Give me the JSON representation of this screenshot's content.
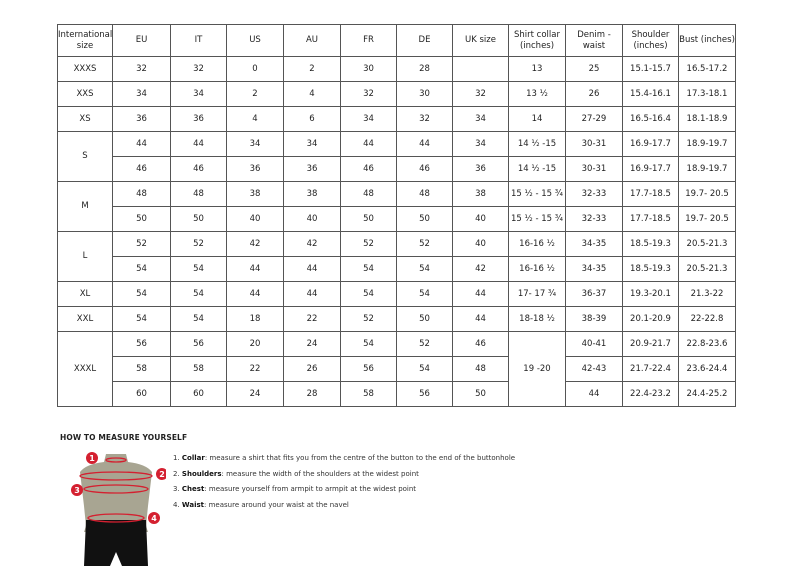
{
  "headers": [
    "International size",
    "EU",
    "IT",
    "US",
    "AU",
    "FR",
    "DE",
    "UK size",
    "Shirt collar (inches)",
    "Denim - waist",
    "Shoulder (inches)",
    "Bust (inches)"
  ],
  "rows": [
    [
      {
        "v": "XXXS"
      },
      {
        "v": "32"
      },
      {
        "v": "32"
      },
      {
        "v": "0"
      },
      {
        "v": "2"
      },
      {
        "v": "30"
      },
      {
        "v": "28"
      },
      {
        "v": ""
      },
      {
        "v": "13"
      },
      {
        "v": "25"
      },
      {
        "v": "15.1-15.7"
      },
      {
        "v": "16.5-17.2"
      }
    ],
    [
      {
        "v": "XXS"
      },
      {
        "v": "34"
      },
      {
        "v": "34"
      },
      {
        "v": "2"
      },
      {
        "v": "4"
      },
      {
        "v": "32"
      },
      {
        "v": "30"
      },
      {
        "v": "32"
      },
      {
        "v": "13 ½"
      },
      {
        "v": "26"
      },
      {
        "v": "15.4-16.1"
      },
      {
        "v": "17.3-18.1"
      }
    ],
    [
      {
        "v": "XS"
      },
      {
        "v": "36"
      },
      {
        "v": "36"
      },
      {
        "v": "4"
      },
      {
        "v": "6"
      },
      {
        "v": "34"
      },
      {
        "v": "32"
      },
      {
        "v": "34"
      },
      {
        "v": "14"
      },
      {
        "v": "27-29"
      },
      {
        "v": "16.5-16.4"
      },
      {
        "v": "18.1-18.9"
      }
    ],
    [
      {
        "v": "S",
        "rs": 2
      },
      {
        "v": "44"
      },
      {
        "v": "44"
      },
      {
        "v": "34"
      },
      {
        "v": "34"
      },
      {
        "v": "44"
      },
      {
        "v": "44"
      },
      {
        "v": "34"
      },
      {
        "v": "14 ½ -15"
      },
      {
        "v": "30-31"
      },
      {
        "v": "16.9-17.7"
      },
      {
        "v": "18.9-19.7"
      }
    ],
    [
      {
        "v": "46"
      },
      {
        "v": "46"
      },
      {
        "v": "36"
      },
      {
        "v": "36"
      },
      {
        "v": "46"
      },
      {
        "v": "46"
      },
      {
        "v": "36"
      },
      {
        "v": "14 ½ -15"
      },
      {
        "v": "30-31"
      },
      {
        "v": "16.9-17.7"
      },
      {
        "v": "18.9-19.7"
      }
    ],
    [
      {
        "v": "M",
        "rs": 2
      },
      {
        "v": "48"
      },
      {
        "v": "48"
      },
      {
        "v": "38"
      },
      {
        "v": "38"
      },
      {
        "v": "48"
      },
      {
        "v": "48"
      },
      {
        "v": "38"
      },
      {
        "v": "15 ½ - 15 ¾"
      },
      {
        "v": "32-33"
      },
      {
        "v": "17.7-18.5"
      },
      {
        "v": "19.7- 20.5"
      }
    ],
    [
      {
        "v": "50"
      },
      {
        "v": "50"
      },
      {
        "v": "40"
      },
      {
        "v": "40"
      },
      {
        "v": "50"
      },
      {
        "v": "50"
      },
      {
        "v": "40"
      },
      {
        "v": "15 ½ - 15 ¾"
      },
      {
        "v": "32-33"
      },
      {
        "v": "17.7-18.5"
      },
      {
        "v": "19.7- 20.5"
      }
    ],
    [
      {
        "v": "L",
        "rs": 2
      },
      {
        "v": "52"
      },
      {
        "v": "52"
      },
      {
        "v": "42"
      },
      {
        "v": "42"
      },
      {
        "v": "52"
      },
      {
        "v": "52"
      },
      {
        "v": "40"
      },
      {
        "v": "16-16 ½"
      },
      {
        "v": "34-35"
      },
      {
        "v": "18.5-19.3"
      },
      {
        "v": "20.5-21.3"
      }
    ],
    [
      {
        "v": "54"
      },
      {
        "v": "54"
      },
      {
        "v": "44"
      },
      {
        "v": "44"
      },
      {
        "v": "54"
      },
      {
        "v": "54"
      },
      {
        "v": "42"
      },
      {
        "v": "16-16 ½"
      },
      {
        "v": "34-35"
      },
      {
        "v": "18.5-19.3"
      },
      {
        "v": "20.5-21.3"
      }
    ],
    [
      {
        "v": "XL"
      },
      {
        "v": "54"
      },
      {
        "v": "54"
      },
      {
        "v": "44"
      },
      {
        "v": "44"
      },
      {
        "v": "54"
      },
      {
        "v": "54"
      },
      {
        "v": "44"
      },
      {
        "v": "17- 17 ¾"
      },
      {
        "v": "36-37"
      },
      {
        "v": "19.3-20.1"
      },
      {
        "v": "21.3-22"
      }
    ],
    [
      {
        "v": "XXL"
      },
      {
        "v": "54"
      },
      {
        "v": "54"
      },
      {
        "v": "18"
      },
      {
        "v": "22"
      },
      {
        "v": "52"
      },
      {
        "v": "50"
      },
      {
        "v": "44"
      },
      {
        "v": "18-18 ½"
      },
      {
        "v": "38-39"
      },
      {
        "v": "20.1-20.9"
      },
      {
        "v": "22-22.8"
      }
    ],
    [
      {
        "v": "XXXL",
        "rs": 3
      },
      {
        "v": "56"
      },
      {
        "v": "56"
      },
      {
        "v": "20"
      },
      {
        "v": "24"
      },
      {
        "v": "54"
      },
      {
        "v": "52"
      },
      {
        "v": "46"
      },
      {
        "v": "19 -20",
        "rs": 3
      },
      {
        "v": "40-41"
      },
      {
        "v": "20.9-21.7"
      },
      {
        "v": "22.8-23.6"
      }
    ],
    [
      {
        "v": "58"
      },
      {
        "v": "58"
      },
      {
        "v": "22"
      },
      {
        "v": "26"
      },
      {
        "v": "56"
      },
      {
        "v": "54"
      },
      {
        "v": "48"
      },
      {
        "v": "42-43"
      },
      {
        "v": "21.7-22.4"
      },
      {
        "v": "23.6-24.4"
      }
    ],
    [
      {
        "v": "60"
      },
      {
        "v": "60"
      },
      {
        "v": "24"
      },
      {
        "v": "28"
      },
      {
        "v": "58"
      },
      {
        "v": "56"
      },
      {
        "v": "50"
      },
      {
        "v": "44"
      },
      {
        "v": "22.4-23.2"
      },
      {
        "v": "24.4-25.2"
      }
    ]
  ],
  "measure": {
    "title": "HOW TO MEASURE YOURSELF",
    "steps": [
      {
        "n": "1.",
        "term": "Collar",
        "text": ": measure a shirt that fits you from the centre of the button to the end of the buttonhole"
      },
      {
        "n": "2.",
        "term": "Shoulders",
        "text": ": measure the width of the shoulders at the widest point"
      },
      {
        "n": "3.",
        "term": "Chest",
        "text": ": measure yourself from armpit to armpit at the widest point"
      },
      {
        "n": "4.",
        "term": "Waist",
        "text": ": measure around your waist at the navel"
      }
    ],
    "markers": [
      "1",
      "2",
      "3",
      "4"
    ],
    "colors": {
      "accent": "#d42030",
      "body": "#a8a592",
      "shorts": "#111111"
    }
  }
}
